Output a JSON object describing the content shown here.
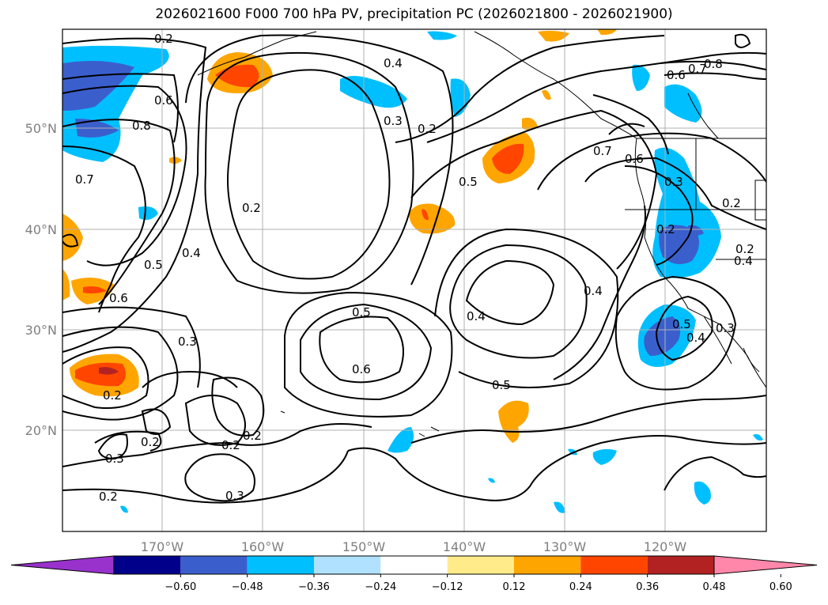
{
  "title": "2026021600 F000 700 hPa PV, precipitation PC (2026021800 - 2026021900)",
  "map": {
    "lon_labels": [
      "170°W",
      "160°W",
      "150°W",
      "140°W",
      "130°W",
      "120°W"
    ],
    "lat_labels": [
      "50°N",
      "40°N",
      "30°N",
      "20°N"
    ],
    "contour_labels": [
      "0.2",
      "0.4",
      "0.3",
      "0.2",
      "0.6",
      "0.8",
      "0.7",
      "0.6",
      "0.8",
      "0.7",
      "0.2",
      "0.5",
      "0.4",
      "0.6",
      "0.3",
      "0.2",
      "0.5",
      "0.4",
      "0.5",
      "0.6",
      "0.5",
      "0.4",
      "0.7",
      "0.6",
      "0.3",
      "0.2",
      "0.2",
      "0.4",
      "0.5",
      "0.4",
      "0.2",
      "0.3",
      "0.2",
      "0.2",
      "0.2",
      "0.3",
      "0.2",
      "0.3"
    ]
  },
  "colorbar": {
    "ticks": [
      "−0.60",
      "−0.48",
      "−0.36",
      "−0.24",
      "−0.12",
      "0.12",
      "0.24",
      "0.36",
      "0.48",
      "0.60"
    ],
    "colors": [
      "#9932cc",
      "#00008b",
      "#3a5fcd",
      "#00bfff",
      "#b0e2ff",
      "#ffffff",
      "#ffeb8a",
      "#ffa500",
      "#ff4500",
      "#b22222",
      "#ff88aa"
    ]
  }
}
